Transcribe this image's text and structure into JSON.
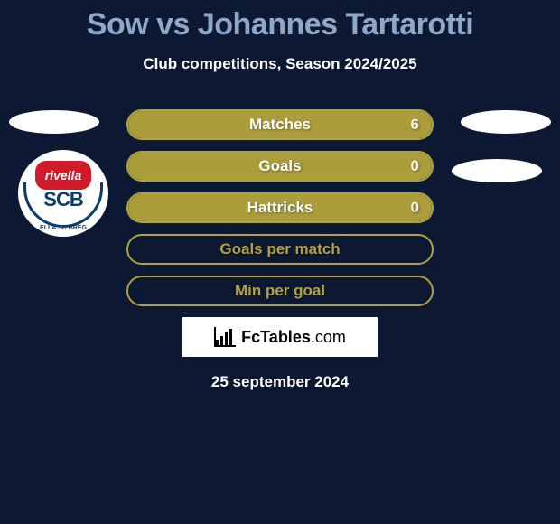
{
  "title": "Sow vs Johannes Tartarotti",
  "subtitle": "Club competitions, Season 2024/2025",
  "badge": {
    "top_label": "rivella",
    "main": "SCB",
    "small": "ELLA SC BREG"
  },
  "bars": [
    {
      "label": "Matches",
      "value": "6",
      "fill": 1.0
    },
    {
      "label": "Goals",
      "value": "0",
      "fill": 1.0
    },
    {
      "label": "Hattricks",
      "value": "0",
      "fill": 1.0
    },
    {
      "label": "Goals per match",
      "value": "",
      "fill": 0
    },
    {
      "label": "Min per goal",
      "value": "",
      "fill": 0
    }
  ],
  "bar_style": {
    "fill_color": "#aa9d3a",
    "border_color": "#b0a23d",
    "height": 34,
    "radius": 17,
    "track_color": "transparent",
    "label_color": "#ffffff",
    "label_fontsize": 17
  },
  "brand": {
    "name_bold": "FcTables",
    "name_light": ".com"
  },
  "date": "25 september 2024",
  "colors": {
    "bg": "#0d1832",
    "title": "#8ea8c9",
    "text": "#ffffff",
    "badge_blue": "#0b3d6b",
    "badge_red": "#d11a2a"
  }
}
